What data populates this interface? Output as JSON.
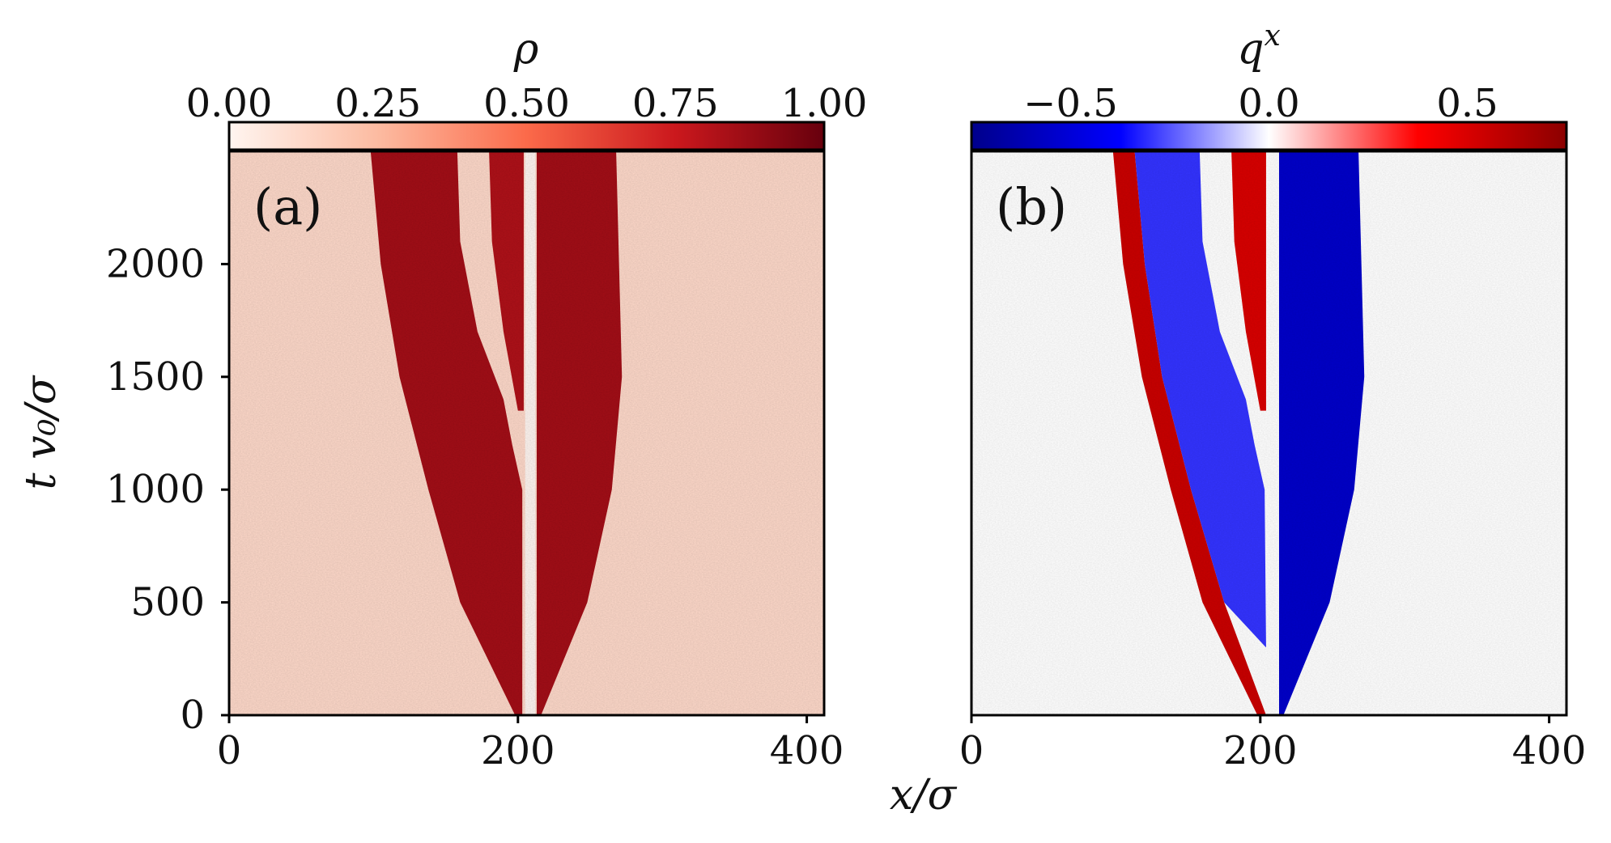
{
  "chart_data": [
    {
      "id": "a",
      "type": "heatmap",
      "panel_label": "(a)",
      "colorbar": {
        "label": "ρ",
        "ticks": [
          "0.00",
          "0.25",
          "0.50",
          "0.75",
          "1.00"
        ],
        "tick_values": [
          0.0,
          0.25,
          0.5,
          0.75,
          1.0
        ],
        "range": [
          0.0,
          1.0
        ],
        "colormap": [
          "#fff5f0",
          "#fcbba1",
          "#fb6a4a",
          "#cb181d",
          "#67000d"
        ]
      },
      "x_ticks": [
        "0",
        "200",
        "400"
      ],
      "x_tick_values": [
        0,
        200,
        400
      ],
      "y_ticks": [
        "0",
        "500",
        "1000",
        "1500",
        "2000"
      ],
      "y_tick_values": [
        0,
        500,
        1000,
        1500,
        2000
      ],
      "xlim": [
        0,
        412
      ],
      "ylim": [
        0,
        2500
      ],
      "obstacle_x": [
        205,
        212
      ],
      "regions": [
        {
          "name": "left-dense-band",
          "value": 0.85,
          "x_left_at_t": [
            [
              0,
              198
            ],
            [
              500,
              160
            ],
            [
              1000,
              138
            ],
            [
              1500,
              118
            ],
            [
              2000,
              105
            ],
            [
              2500,
              98
            ]
          ],
          "x_right_at_t": [
            [
              0,
              203
            ],
            [
              500,
              203
            ],
            [
              1000,
              203
            ],
            [
              1200,
              196
            ],
            [
              1400,
              190
            ],
            [
              1700,
              172
            ],
            [
              2100,
              160
            ],
            [
              2500,
              158
            ]
          ]
        },
        {
          "name": "middle-dense-strip",
          "value": 0.82,
          "x_left_at_t": [
            [
              1350,
              200
            ],
            [
              1700,
              190
            ],
            [
              2100,
              182
            ],
            [
              2500,
              180
            ]
          ],
          "x_right_at_t": [
            [
              1350,
              204
            ],
            [
              2500,
              204
            ]
          ]
        },
        {
          "name": "right-dense-band",
          "value": 0.85,
          "x_left_at_t": [
            [
              0,
              213
            ],
            [
              2500,
              213
            ]
          ],
          "x_right_at_t": [
            [
              0,
              216
            ],
            [
              500,
              248
            ],
            [
              1000,
              265
            ],
            [
              1500,
              272
            ],
            [
              2000,
              270
            ],
            [
              2500,
              268
            ]
          ]
        }
      ],
      "background_value": 0.12
    },
    {
      "id": "b",
      "type": "heatmap",
      "panel_label": "(b)",
      "colorbar": {
        "label": "q",
        "label_superscript": "x",
        "ticks": [
          "−0.5",
          "0.0",
          "0.5"
        ],
        "tick_values": [
          -0.5,
          0.0,
          0.5
        ],
        "range": [
          -0.75,
          0.75
        ],
        "colormap": [
          "#00008b",
          "#0000ff",
          "#ffffff",
          "#ff0000",
          "#8b0000"
        ]
      },
      "x_ticks": [
        "0",
        "200",
        "400"
      ],
      "x_tick_values": [
        0,
        200,
        400
      ],
      "xlim": [
        0,
        412
      ],
      "ylim": [
        0,
        2500
      ],
      "obstacle_x": [
        205,
        212
      ],
      "regions": [
        {
          "name": "left-edge-red",
          "value": 0.55,
          "x_left_at_t": [
            [
              0,
              198
            ],
            [
              500,
              160
            ],
            [
              1000,
              138
            ],
            [
              1500,
              118
            ],
            [
              2000,
              105
            ],
            [
              2500,
              98
            ]
          ],
          "x_right_at_t": [
            [
              0,
              204
            ],
            [
              500,
              175
            ],
            [
              1000,
              152
            ],
            [
              1500,
              132
            ],
            [
              2000,
              120
            ],
            [
              2500,
              113
            ]
          ]
        },
        {
          "name": "left-interior-mixed",
          "value": -0.3,
          "x_left_at_t": [
            [
              300,
              204
            ],
            [
              500,
              175
            ],
            [
              1000,
              152
            ],
            [
              1500,
              132
            ],
            [
              2000,
              120
            ],
            [
              2500,
              113
            ]
          ],
          "x_right_at_t": [
            [
              300,
              204
            ],
            [
              1000,
              203
            ],
            [
              1200,
              196
            ],
            [
              1400,
              190
            ],
            [
              1700,
              172
            ],
            [
              2100,
              160
            ],
            [
              2500,
              158
            ]
          ]
        },
        {
          "name": "middle-strip-red",
          "value": 0.5,
          "x_left_at_t": [
            [
              1350,
              200
            ],
            [
              1700,
              190
            ],
            [
              2100,
              182
            ],
            [
              2500,
              180
            ]
          ],
          "x_right_at_t": [
            [
              1350,
              204
            ],
            [
              2500,
              204
            ]
          ]
        },
        {
          "name": "right-band-blue",
          "value": -0.55,
          "x_left_at_t": [
            [
              0,
              213
            ],
            [
              2500,
              213
            ]
          ],
          "x_right_at_t": [
            [
              0,
              216
            ],
            [
              500,
              248
            ],
            [
              1000,
              265
            ],
            [
              1500,
              272
            ],
            [
              2000,
              270
            ],
            [
              2500,
              268
            ]
          ]
        }
      ],
      "background_value": 0.0
    }
  ],
  "shared_axes": {
    "xlabel": "x/σ",
    "ylabel": "t v₀/σ"
  }
}
